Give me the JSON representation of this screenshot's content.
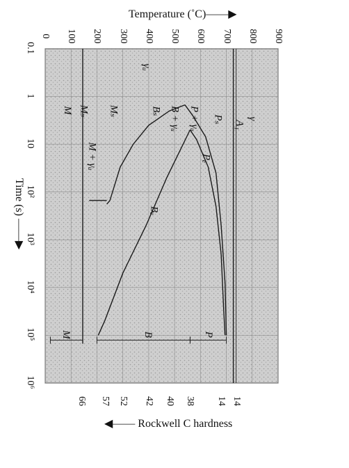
{
  "chart_data": {
    "type": "line",
    "title": "",
    "x_axis": {
      "label": "Time (s) ——▶",
      "scale": "log",
      "range": [
        0.1,
        1000000
      ],
      "tick_labels": [
        "0.1",
        "1",
        "10",
        "10²",
        "10³",
        "10⁴",
        "10⁵",
        "10⁶"
      ],
      "tick_values": [
        0.1,
        1,
        10,
        100,
        1000,
        10000,
        100000,
        1000000
      ]
    },
    "y_axis": {
      "label": "Temperature (˚C)——▶",
      "range": [
        0,
        900
      ],
      "tick_labels": [
        "0",
        "100",
        "200",
        "300",
        "400",
        "500",
        "600",
        "700",
        "800",
        "900"
      ],
      "tick_values": [
        0,
        100,
        200,
        300,
        400,
        500,
        600,
        700,
        800,
        900
      ]
    },
    "secondary_axis": {
      "label": "◀—— Rockwell C hardness",
      "tick_labels": [
        "66",
        "57",
        "52",
        "42",
        "40",
        "38",
        "14",
        "14"
      ],
      "tick_temperatures": [
        140,
        230,
        300,
        400,
        480,
        560,
        680,
        740
      ]
    },
    "grid": true,
    "series": [
      {
        "name": "A₁",
        "values": [
          {
            "t": 0.1,
            "T": 727
          },
          {
            "t": 1000000,
            "T": 727
          }
        ]
      },
      {
        "name": "Mₛ",
        "values": [
          {
            "t": 0.1,
            "T": 145
          },
          {
            "t": 150000,
            "T": 145
          }
        ]
      },
      {
        "name": "Pₛ",
        "values": [
          {
            "t": 100000,
            "T": 700
          },
          {
            "t": 8000,
            "T": 695
          },
          {
            "t": 500,
            "T": 680
          },
          {
            "t": 40,
            "T": 660
          },
          {
            "t": 7,
            "T": 620
          },
          {
            "t": 2.5,
            "T": 570
          },
          {
            "t": 1.5,
            "T": 540
          }
        ]
      },
      {
        "name": "Bₛ",
        "values": [
          {
            "t": 1.5,
            "T": 540
          },
          {
            "t": 2,
            "T": 480
          },
          {
            "t": 4,
            "T": 400
          },
          {
            "t": 10,
            "T": 340
          },
          {
            "t": 30,
            "T": 290
          },
          {
            "t": 150,
            "T": 250
          },
          {
            "t": 180,
            "T": 238
          }
        ]
      },
      {
        "name": "Pₑ",
        "values": [
          {
            "t": 5,
            "T": 560
          },
          {
            "t": 8,
            "T": 585
          },
          {
            "t": 30,
            "T": 630
          },
          {
            "t": 200,
            "T": 660
          },
          {
            "t": 2000,
            "T": 680
          },
          {
            "t": 30000,
            "T": 690
          },
          {
            "t": 100000,
            "T": 695
          }
        ]
      },
      {
        "name": "Bₑ",
        "values": [
          {
            "t": 5,
            "T": 560
          },
          {
            "t": 50,
            "T": 470
          },
          {
            "t": 500,
            "T": 390
          },
          {
            "t": 5000,
            "T": 300
          },
          {
            "t": 50000,
            "T": 230
          },
          {
            "t": 100000,
            "T": 205
          }
        ]
      },
      {
        "name": "",
        "values": [
          {
            "t": 150,
            "T": 238
          },
          {
            "t": 150,
            "T": 170
          }
        ]
      }
    ],
    "annotations": [
      {
        "text": "γ",
        "t": 3,
        "T": 800
      },
      {
        "text": "A₁",
        "t": 4,
        "T": 750
      },
      {
        "text": "Pₛ",
        "t": 3,
        "T": 670
      },
      {
        "text": "P + γᵤ",
        "t": 3,
        "T": 575
      },
      {
        "text": "B + γᵤ",
        "t": 3,
        "T": 500
      },
      {
        "text": "Bₛ",
        "t": 2,
        "T": 430
      },
      {
        "text": "γᵤ",
        "t": 0.25,
        "T": 390
      },
      {
        "text": "Mₛ",
        "t": 2,
        "T": 265
      },
      {
        "text": "M + γᵤ",
        "t": 18,
        "T": 180
      },
      {
        "text": "Mₛ",
        "t": 2,
        "T": 150
      },
      {
        "text": "M",
        "t": 2,
        "T": 85
      },
      {
        "text": "Pₑ",
        "t": 20,
        "T": 620
      },
      {
        "text": "Bₑ",
        "t": 250,
        "T": 420
      },
      {
        "text": "M",
        "t": 100000,
        "T": 80
      },
      {
        "text": "B",
        "t": 100000,
        "T": 395
      },
      {
        "text": "P",
        "t": 100000,
        "T": 630
      }
    ]
  }
}
